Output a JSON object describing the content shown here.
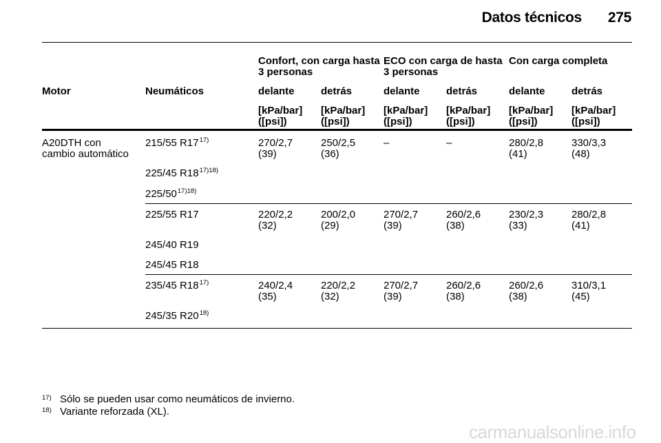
{
  "header": {
    "title": "Datos técnicos",
    "page_number": "275"
  },
  "table": {
    "groups": [
      {
        "line1": "Confort, con carga hasta",
        "line2": "3 personas"
      },
      {
        "line1": "ECO con carga de hasta",
        "line2": "3 personas"
      },
      {
        "line1": "Con carga completa",
        "line2": ""
      }
    ],
    "col_motor": "Motor",
    "col_tyres": "Neumáticos",
    "sub_headers": [
      "delante",
      "detrás",
      "delante",
      "detrás",
      "delante",
      "detrás"
    ],
    "unit_line1": "[kPa/bar]",
    "unit_line2": "([psi])",
    "motor_line1": "A20DTH con",
    "motor_line2": "cambio automático",
    "blocks": [
      {
        "tyres": [
          {
            "size": "215/55 R17",
            "sup": "17)"
          },
          {
            "size": "225/45 R18",
            "sup": "17)18)"
          },
          {
            "size": "225/50",
            "sup": "17)18)"
          }
        ],
        "values": [
          [
            "270/2,7",
            "(39)"
          ],
          [
            "250/2,5",
            "(36)"
          ],
          [
            "–",
            ""
          ],
          [
            "–",
            ""
          ],
          [
            "280/2,8",
            "(41)"
          ],
          [
            "330/3,3",
            "(48)"
          ]
        ]
      },
      {
        "tyres": [
          {
            "size": "225/55 R17",
            "sup": ""
          },
          {
            "size": "245/40 R19",
            "sup": ""
          },
          {
            "size": "245/45 R18",
            "sup": ""
          }
        ],
        "values": [
          [
            "220/2,2",
            "(32)"
          ],
          [
            "200/2,0",
            "(29)"
          ],
          [
            "270/2,7",
            "(39)"
          ],
          [
            "260/2,6",
            "(38)"
          ],
          [
            "230/2,3",
            "(33)"
          ],
          [
            "280/2,8",
            "(41)"
          ]
        ]
      },
      {
        "tyres": [
          {
            "size": "235/45 R18",
            "sup": "17)"
          },
          {
            "size": "245/35 R20",
            "sup": "18)"
          }
        ],
        "values": [
          [
            "240/2,4",
            "(35)"
          ],
          [
            "220/2,2",
            "(32)"
          ],
          [
            "270/2,7",
            "(39)"
          ],
          [
            "260/2,6",
            "(38)"
          ],
          [
            "260/2,6",
            "(38)"
          ],
          [
            "310/3,1",
            "(45)"
          ]
        ]
      }
    ]
  },
  "footnotes": [
    {
      "mark": "17)",
      "text": "Sólo se pueden usar como neumáticos de invierno."
    },
    {
      "mark": "18)",
      "text": "Variante reforzada (XL)."
    }
  ],
  "watermark": "carmanualsonline.info"
}
